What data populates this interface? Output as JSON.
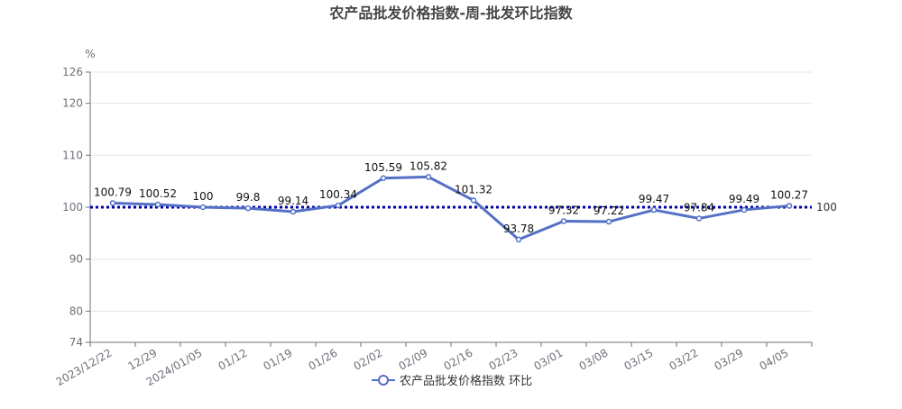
{
  "chart_data": {
    "type": "line",
    "title": "农产品批发价格指数-周-批发环比指数",
    "unit": "%",
    "categories": [
      "2023/12/22",
      "12/29",
      "2024/01/05",
      "01/12",
      "01/19",
      "01/26",
      "02/02",
      "02/09",
      "02/16",
      "02/23",
      "03/01",
      "03/08",
      "03/15",
      "03/22",
      "03/29",
      "04/05"
    ],
    "series": [
      {
        "name": "农产品批发价格指数 环比",
        "values": [
          100.79,
          100.52,
          100,
          99.8,
          99.14,
          100.34,
          105.59,
          105.82,
          101.32,
          93.78,
          97.32,
          97.22,
          99.47,
          97.84,
          99.49,
          100.27
        ]
      }
    ],
    "ylim": [
      74,
      126
    ],
    "yticks": [
      74,
      80,
      90,
      100,
      110,
      120,
      126
    ],
    "reference_line": {
      "value": 100,
      "label": "100",
      "color": "#0000a0"
    },
    "grid": true,
    "legend_position": "bottom-center",
    "colors": {
      "series": "#5470c6",
      "grid": "#e0e6f1",
      "axis": "#6e7079"
    }
  }
}
